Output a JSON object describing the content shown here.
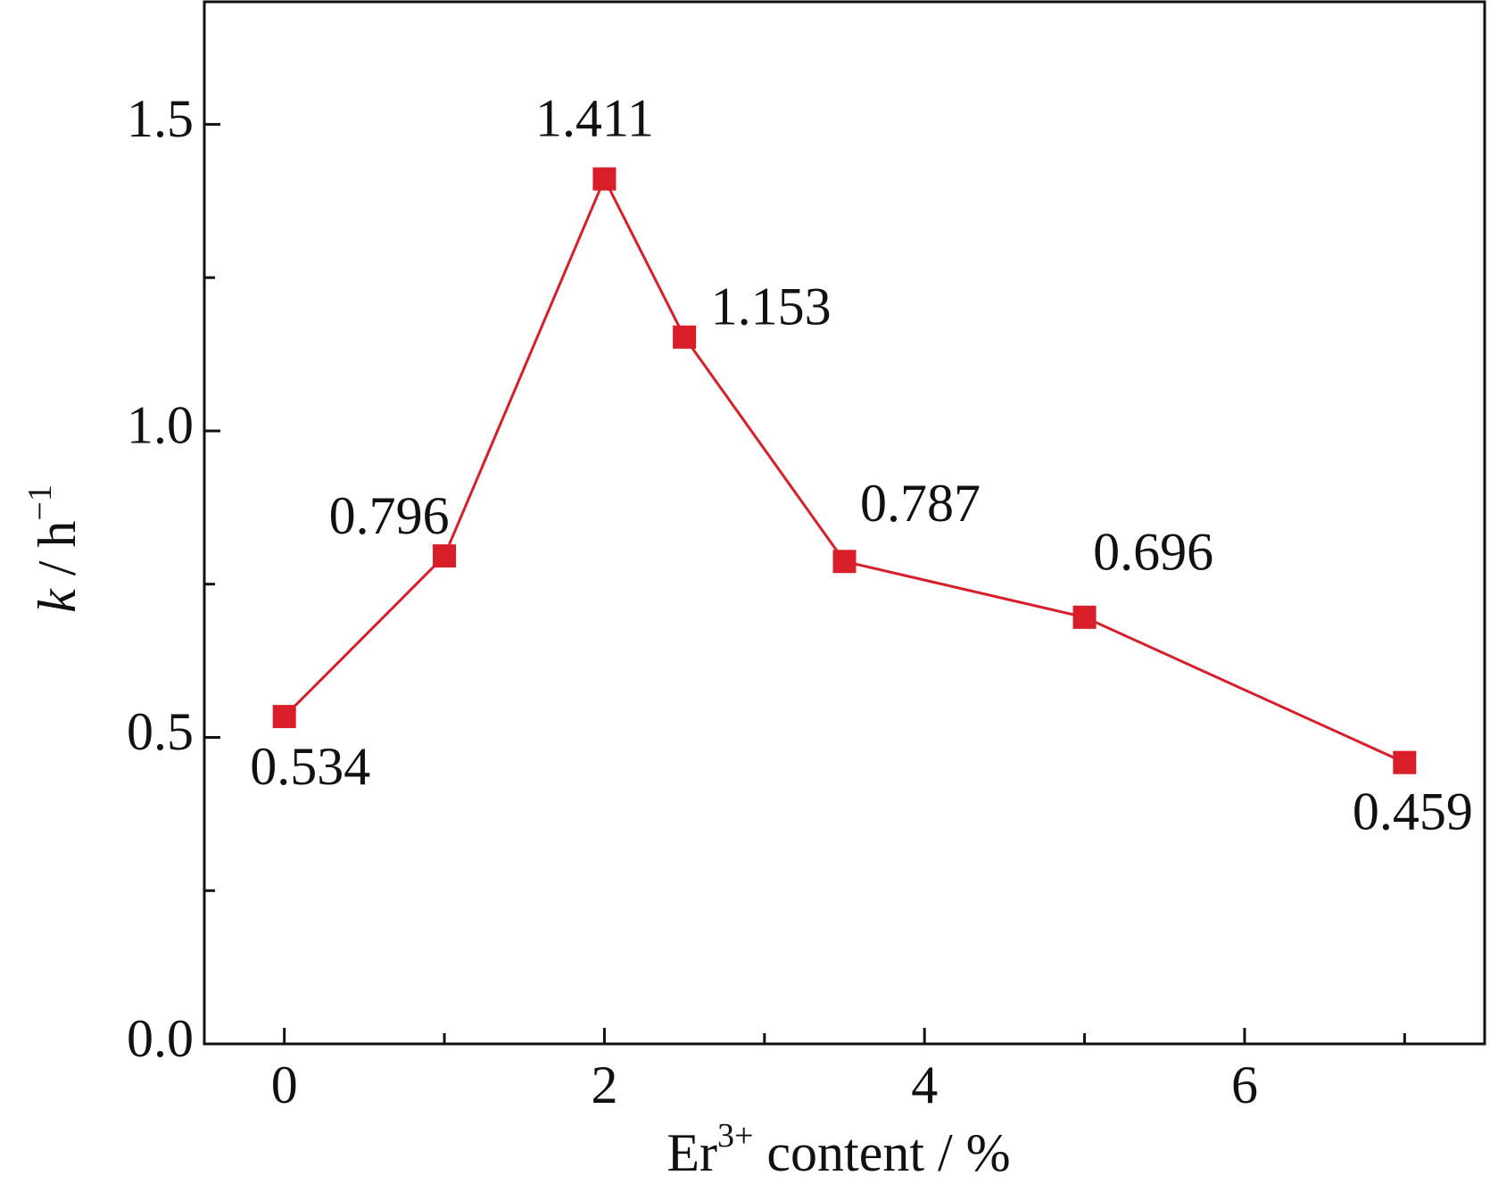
{
  "chart_data": {
    "type": "line",
    "xlabel": [
      "Er",
      "3+",
      " content / %"
    ],
    "ylabel": [
      "k",
      " / h",
      "−1"
    ],
    "x": [
      0,
      1,
      2,
      2.5,
      3.5,
      5,
      7
    ],
    "series": [
      {
        "name": "k",
        "color": "#d81e28",
        "values": [
          0.534,
          0.796,
          1.411,
          1.153,
          0.787,
          0.696,
          0.459
        ]
      }
    ],
    "xlim": [
      -0.5,
      7.5
    ],
    "xticks": [
      0,
      2,
      4,
      6
    ],
    "xminorticks": [
      1,
      3,
      5,
      7
    ],
    "ylim": [
      0,
      1.7
    ],
    "yticks": [
      {
        "value": 0,
        "label": "0.0"
      },
      0.5,
      {
        "value": 1,
        "label": "1.0"
      },
      1.5
    ],
    "yminorticks": [
      0.25,
      0.75,
      1.25
    ],
    "grid": false
  }
}
